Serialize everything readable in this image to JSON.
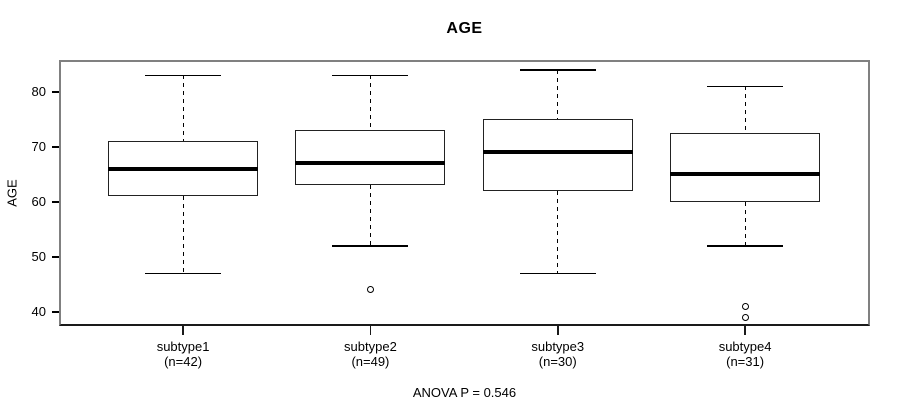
{
  "chart_data": {
    "type": "boxplot",
    "title": "AGE",
    "ylabel": "AGE",
    "xlabel": "",
    "annotation": "ANOVA P = 0.546",
    "yticks": [
      40,
      50,
      60,
      70,
      80
    ],
    "ylim": [
      37.4,
      85.8
    ],
    "grid": false,
    "legend": "none",
    "groups": [
      {
        "label": "subtype1",
        "sublabel": "(n=42)",
        "n": 42,
        "whisker_low": 47,
        "q1": 61,
        "median": 66,
        "q3": 71,
        "whisker_high": 83,
        "outliers": []
      },
      {
        "label": "subtype2",
        "sublabel": "(n=49)",
        "n": 49,
        "whisker_low": 52,
        "q1": 63,
        "median": 67,
        "q3": 73,
        "whisker_high": 83,
        "outliers": [
          44
        ]
      },
      {
        "label": "subtype3",
        "sublabel": "(n=30)",
        "n": 30,
        "whisker_low": 47,
        "q1": 62,
        "median": 69,
        "q3": 75,
        "whisker_high": 84,
        "outliers": []
      },
      {
        "label": "subtype4",
        "sublabel": "(n=31)",
        "n": 31,
        "whisker_low": 52,
        "q1": 60,
        "median": 65,
        "q3": 72.5,
        "whisker_high": 81,
        "outliers": [
          41,
          39
        ]
      }
    ],
    "colors": {
      "line": "#000000",
      "box_edge": "#222222",
      "frame": "#808080",
      "axis_line": "#1a1a1a",
      "background": "#ffffff"
    }
  }
}
